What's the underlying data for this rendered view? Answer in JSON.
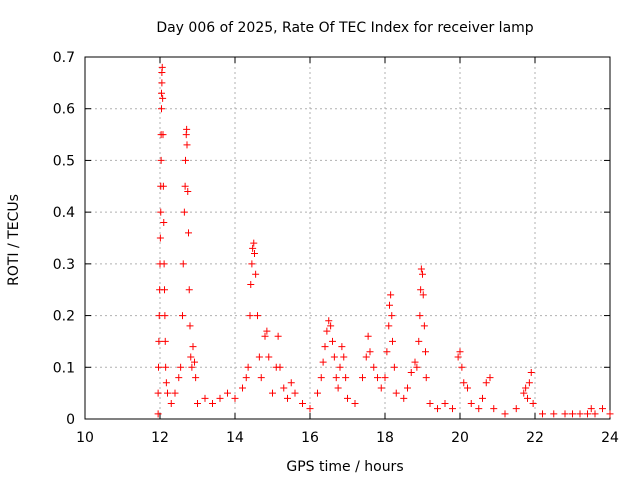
{
  "chart_data": {
    "type": "scatter",
    "title": "Day 006 of 2025, Rate Of TEC Index for receiver lamp",
    "xlabel": "GPS time / hours",
    "ylabel": "ROTI / TECUs",
    "xlim": [
      10,
      24
    ],
    "ylim": [
      0,
      0.7
    ],
    "x_ticks": [
      "10",
      "12",
      "14",
      "16",
      "18",
      "20",
      "22",
      "24"
    ],
    "y_ticks": [
      "0",
      "0.1",
      "0.2",
      "0.3",
      "0.4",
      "0.5",
      "0.6",
      "0.7"
    ],
    "grid": true,
    "marker": "+",
    "color": "#ff0000",
    "series": [
      {
        "points": [
          [
            11.95,
            0.01
          ],
          [
            11.95,
            0.05
          ],
          [
            11.96,
            0.1
          ],
          [
            11.97,
            0.15
          ],
          [
            11.98,
            0.2
          ],
          [
            11.99,
            0.25
          ],
          [
            12.0,
            0.3
          ],
          [
            12.01,
            0.35
          ],
          [
            12.02,
            0.4
          ],
          [
            12.02,
            0.45
          ],
          [
            12.03,
            0.5
          ],
          [
            12.03,
            0.55
          ],
          [
            12.04,
            0.6
          ],
          [
            12.04,
            0.63
          ],
          [
            12.05,
            0.65
          ],
          [
            12.05,
            0.67
          ],
          [
            12.06,
            0.68
          ],
          [
            12.07,
            0.62
          ],
          [
            12.08,
            0.55
          ],
          [
            12.09,
            0.45
          ],
          [
            12.1,
            0.38
          ],
          [
            12.11,
            0.3
          ],
          [
            12.12,
            0.25
          ],
          [
            12.13,
            0.2
          ],
          [
            12.14,
            0.15
          ],
          [
            12.15,
            0.1
          ],
          [
            12.17,
            0.07
          ],
          [
            12.2,
            0.05
          ],
          [
            12.3,
            0.03
          ],
          [
            12.4,
            0.05
          ],
          [
            12.5,
            0.08
          ],
          [
            12.55,
            0.1
          ],
          [
            12.6,
            0.2
          ],
          [
            12.62,
            0.3
          ],
          [
            12.65,
            0.4
          ],
          [
            12.67,
            0.45
          ],
          [
            12.68,
            0.5
          ],
          [
            12.7,
            0.55
          ],
          [
            12.71,
            0.56
          ],
          [
            12.72,
            0.53
          ],
          [
            12.74,
            0.44
          ],
          [
            12.76,
            0.36
          ],
          [
            12.78,
            0.25
          ],
          [
            12.8,
            0.18
          ],
          [
            12.82,
            0.12
          ],
          [
            12.85,
            0.1
          ],
          [
            12.88,
            0.14
          ],
          [
            12.92,
            0.11
          ],
          [
            12.95,
            0.08
          ],
          [
            13.0,
            0.03
          ],
          [
            13.2,
            0.04
          ],
          [
            13.4,
            0.03
          ],
          [
            13.6,
            0.04
          ],
          [
            13.8,
            0.05
          ],
          [
            14.0,
            0.04
          ],
          [
            14.2,
            0.06
          ],
          [
            14.3,
            0.08
          ],
          [
            14.35,
            0.1
          ],
          [
            14.4,
            0.2
          ],
          [
            14.42,
            0.26
          ],
          [
            14.45,
            0.3
          ],
          [
            14.47,
            0.33
          ],
          [
            14.5,
            0.34
          ],
          [
            14.52,
            0.32
          ],
          [
            14.55,
            0.28
          ],
          [
            14.6,
            0.2
          ],
          [
            14.65,
            0.12
          ],
          [
            14.7,
            0.08
          ],
          [
            14.8,
            0.16
          ],
          [
            14.85,
            0.17
          ],
          [
            14.9,
            0.12
          ],
          [
            15.0,
            0.05
          ],
          [
            15.1,
            0.1
          ],
          [
            15.15,
            0.16
          ],
          [
            15.2,
            0.1
          ],
          [
            15.3,
            0.06
          ],
          [
            15.4,
            0.04
          ],
          [
            15.5,
            0.07
          ],
          [
            15.6,
            0.05
          ],
          [
            15.8,
            0.03
          ],
          [
            16.0,
            0.02
          ],
          [
            16.2,
            0.05
          ],
          [
            16.3,
            0.08
          ],
          [
            16.35,
            0.11
          ],
          [
            16.4,
            0.14
          ],
          [
            16.45,
            0.17
          ],
          [
            16.5,
            0.19
          ],
          [
            16.55,
            0.18
          ],
          [
            16.6,
            0.15
          ],
          [
            16.65,
            0.12
          ],
          [
            16.7,
            0.08
          ],
          [
            16.75,
            0.06
          ],
          [
            16.8,
            0.1
          ],
          [
            16.85,
            0.14
          ],
          [
            16.9,
            0.12
          ],
          [
            16.95,
            0.08
          ],
          [
            17.0,
            0.04
          ],
          [
            17.2,
            0.03
          ],
          [
            17.4,
            0.08
          ],
          [
            17.5,
            0.12
          ],
          [
            17.55,
            0.16
          ],
          [
            17.6,
            0.13
          ],
          [
            17.7,
            0.1
          ],
          [
            17.8,
            0.08
          ],
          [
            17.9,
            0.06
          ],
          [
            18.0,
            0.08
          ],
          [
            18.05,
            0.13
          ],
          [
            18.1,
            0.18
          ],
          [
            18.12,
            0.22
          ],
          [
            18.15,
            0.24
          ],
          [
            18.18,
            0.2
          ],
          [
            18.2,
            0.15
          ],
          [
            18.25,
            0.1
          ],
          [
            18.3,
            0.05
          ],
          [
            18.5,
            0.04
          ],
          [
            18.6,
            0.06
          ],
          [
            18.7,
            0.09
          ],
          [
            18.8,
            0.11
          ],
          [
            18.85,
            0.1
          ],
          [
            18.9,
            0.15
          ],
          [
            18.93,
            0.2
          ],
          [
            18.95,
            0.25
          ],
          [
            18.97,
            0.29
          ],
          [
            19.0,
            0.28
          ],
          [
            19.02,
            0.24
          ],
          [
            19.05,
            0.18
          ],
          [
            19.08,
            0.13
          ],
          [
            19.1,
            0.08
          ],
          [
            19.2,
            0.03
          ],
          [
            19.4,
            0.02
          ],
          [
            19.6,
            0.03
          ],
          [
            19.8,
            0.02
          ],
          [
            19.95,
            0.12
          ],
          [
            20.0,
            0.13
          ],
          [
            20.05,
            0.1
          ],
          [
            20.1,
            0.07
          ],
          [
            20.2,
            0.06
          ],
          [
            20.3,
            0.03
          ],
          [
            20.5,
            0.02
          ],
          [
            20.6,
            0.04
          ],
          [
            20.7,
            0.07
          ],
          [
            20.8,
            0.08
          ],
          [
            20.9,
            0.02
          ],
          [
            21.2,
            0.01
          ],
          [
            21.5,
            0.02
          ],
          [
            21.7,
            0.05
          ],
          [
            21.75,
            0.06
          ],
          [
            21.8,
            0.04
          ],
          [
            21.85,
            0.07
          ],
          [
            21.9,
            0.09
          ],
          [
            21.95,
            0.03
          ],
          [
            22.2,
            0.01
          ],
          [
            22.5,
            0.01
          ],
          [
            22.8,
            0.01
          ],
          [
            23.0,
            0.01
          ],
          [
            23.2,
            0.01
          ],
          [
            23.4,
            0.01
          ],
          [
            23.5,
            0.02
          ],
          [
            23.6,
            0.01
          ],
          [
            23.8,
            0.02
          ],
          [
            24.0,
            0.01
          ]
        ]
      }
    ]
  }
}
